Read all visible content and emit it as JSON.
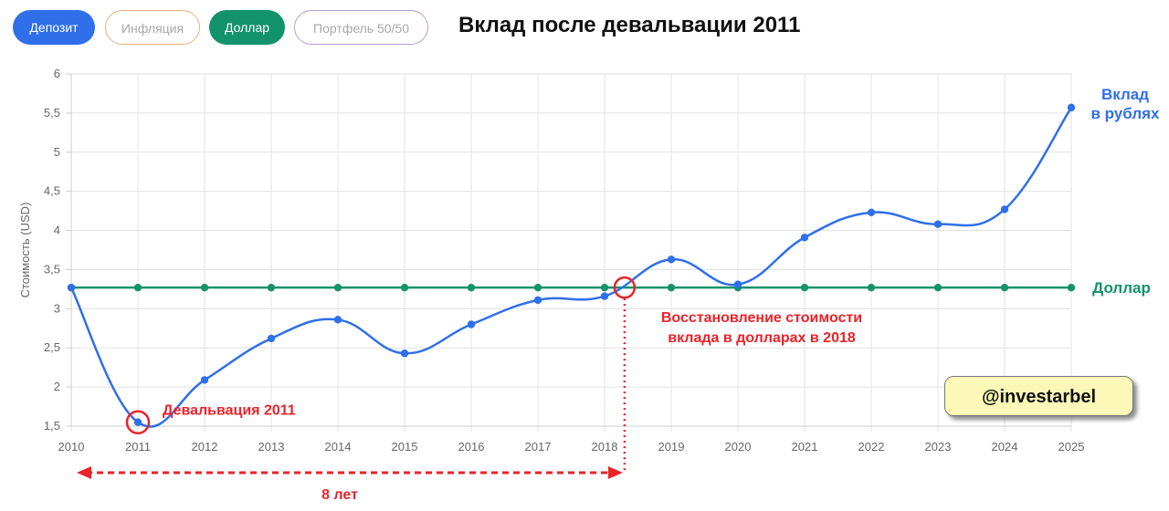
{
  "buttons": [
    {
      "label": "Депозит",
      "color": "#2f6fea",
      "active": true
    },
    {
      "label": "Инфляция",
      "color": "#f0b27a",
      "active": false
    },
    {
      "label": "Доллар",
      "color": "#13936a",
      "active": true
    },
    {
      "label": "Портфель 50/50",
      "color": "#b39ddb",
      "active": false
    }
  ],
  "watermark": "@investarbel",
  "chart_data": {
    "type": "line",
    "title": "Вклад после девальвации 2011",
    "ylabel": "Стоимость (USD)",
    "xlabel": "",
    "ylim": [
      1.5,
      6
    ],
    "y_ticks": [
      "1,5",
      "2",
      "2,5",
      "3",
      "3,5",
      "4",
      "4,5",
      "5",
      "5,5",
      "6"
    ],
    "categories": [
      "2010",
      "2011",
      "2012",
      "2013",
      "2014",
      "2015",
      "2016",
      "2017",
      "2018",
      "2019",
      "2020",
      "2021",
      "2022",
      "2023",
      "2024",
      "2025"
    ],
    "grid": true,
    "series": [
      {
        "name": "Вклад в рублях",
        "label_lines": [
          "Вклад",
          "в рублях"
        ],
        "color": "#2f6fea",
        "values": [
          3.27,
          1.55,
          2.09,
          2.62,
          2.86,
          2.43,
          2.8,
          3.11,
          3.16,
          3.63,
          3.31,
          3.91,
          4.23,
          4.08,
          4.27,
          5.57
        ]
      },
      {
        "name": "Доллар",
        "label_lines": [
          "Доллар"
        ],
        "color": "#13936a",
        "values": [
          3.27,
          3.27,
          3.27,
          3.27,
          3.27,
          3.27,
          3.27,
          3.27,
          3.27,
          3.27,
          3.27,
          3.27,
          3.27,
          3.27,
          3.27,
          3.27
        ]
      }
    ],
    "annotations": {
      "devaluation": {
        "text": "Девальвация 2011",
        "x": 1,
        "y": 1.55
      },
      "recovery": {
        "lines": [
          "Восстановление стоимости",
          "вклада в долларах в 2018"
        ],
        "x": 8.3,
        "y": 3.27
      },
      "span": {
        "text": "8 лет",
        "from_x": 0,
        "to_x": 8.3
      },
      "color": "#e8232a"
    }
  }
}
